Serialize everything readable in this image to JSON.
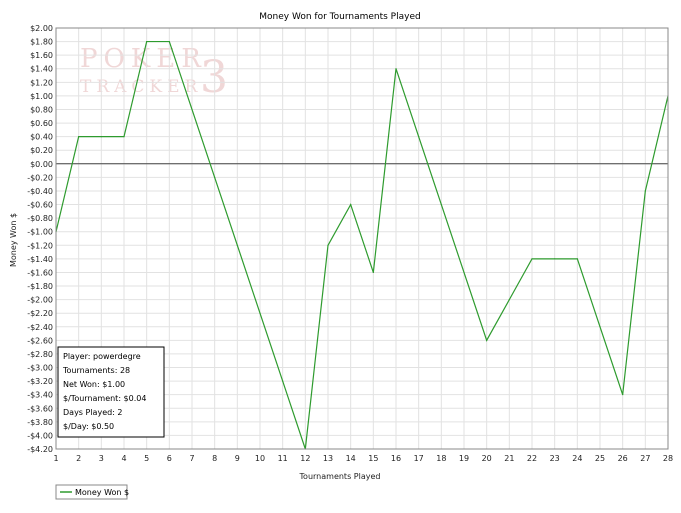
{
  "chart_data": {
    "type": "line",
    "title": "Money Won for Tournaments Played",
    "xlabel": "Tournaments Played",
    "ylabel": "Money Won $",
    "xlim": [
      1,
      28
    ],
    "ylim": [
      -4.2,
      2.0
    ],
    "x_ticks": [
      1,
      2,
      3,
      4,
      5,
      6,
      7,
      8,
      9,
      10,
      11,
      12,
      13,
      14,
      15,
      16,
      17,
      18,
      19,
      20,
      21,
      22,
      23,
      24,
      25,
      26,
      27,
      28
    ],
    "y_ticks": [
      2.0,
      1.8,
      1.6,
      1.4,
      1.2,
      1.0,
      0.8,
      0.6,
      0.4,
      0.2,
      0.0,
      -0.2,
      -0.4,
      -0.6,
      -0.8,
      -1.0,
      -1.2,
      -1.4,
      -1.6,
      -1.8,
      -2.0,
      -2.2,
      -2.4,
      -2.6,
      -2.8,
      -3.0,
      -3.2,
      -3.4,
      -3.6,
      -3.8,
      -4.0,
      -4.2
    ],
    "y_tick_labels": [
      "$2.00",
      "$1.80",
      "$1.60",
      "$1.40",
      "$1.20",
      "$1.00",
      "$0.80",
      "$0.60",
      "$0.40",
      "$0.20",
      "$0.00",
      "-$0.20",
      "-$0.40",
      "-$0.60",
      "-$0.80",
      "-$1.00",
      "-$1.20",
      "-$1.40",
      "-$1.60",
      "-$1.80",
      "-$2.00",
      "-$2.20",
      "-$2.40",
      "-$2.60",
      "-$2.80",
      "-$3.00",
      "-$3.20",
      "-$3.40",
      "-$3.60",
      "-$3.80",
      "-$4.00",
      "-$4.20"
    ],
    "grid": true,
    "legend_position": "bottom-left",
    "series": [
      {
        "name": "Money Won $",
        "color": "#2e9b2e",
        "x": [
          1,
          2,
          3,
          4,
          5,
          6,
          7,
          8,
          9,
          10,
          11,
          12,
          13,
          14,
          15,
          16,
          17,
          18,
          19,
          20,
          21,
          22,
          23,
          24,
          25,
          26,
          27,
          28
        ],
        "values": [
          -1.0,
          0.4,
          0.4,
          0.4,
          1.8,
          1.8,
          0.8,
          -0.2,
          -1.2,
          -2.2,
          -3.2,
          -4.2,
          -1.2,
          -0.6,
          -1.6,
          1.4,
          0.4,
          -0.6,
          -1.6,
          -2.6,
          -2.0,
          -1.4,
          -1.4,
          -1.4,
          -2.4,
          -3.4,
          -0.4,
          1.0
        ]
      }
    ]
  },
  "info_box": {
    "lines": [
      "Player: powerdegre",
      "Tournaments: 28",
      "Net Won: $1.00",
      "$/Tournament: $0.04",
      "Days Played: 2",
      "$/Day: $0.50"
    ]
  },
  "watermark": {
    "line1": "POKER",
    "line2": "TRACKER",
    "version": "3"
  },
  "colors": {
    "series": "#2e9b2e",
    "grid": "#e2e2e2",
    "zero_line": "#444444",
    "watermark": "#f0d7d7"
  }
}
